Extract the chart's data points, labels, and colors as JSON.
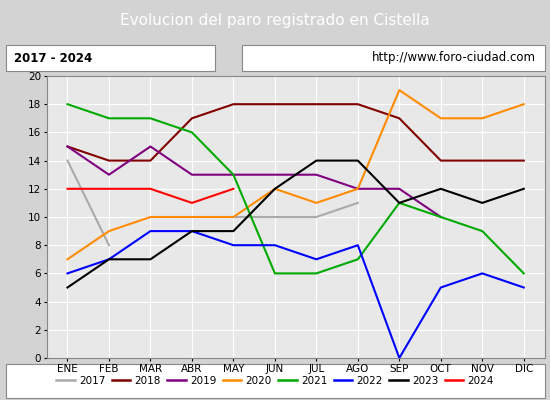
{
  "title": "Evolucion del paro registrado en Cistella",
  "subtitle_left": "2017 - 2024",
  "subtitle_right": "http://www.foro-ciudad.com",
  "months": [
    "ENE",
    "FEB",
    "MAR",
    "ABR",
    "MAY",
    "JUN",
    "JUL",
    "AGO",
    "SEP",
    "OCT",
    "NOV",
    "DIC"
  ],
  "ylim": [
    0,
    20
  ],
  "yticks": [
    0,
    2,
    4,
    6,
    8,
    10,
    12,
    14,
    16,
    18,
    20
  ],
  "series": {
    "2017": {
      "color": "#aaaaaa",
      "values": [
        14,
        8,
        null,
        null,
        10,
        10,
        10,
        11,
        null,
        null,
        null,
        null
      ]
    },
    "2018": {
      "color": "#800000",
      "values": [
        15,
        14,
        14,
        17,
        18,
        18,
        18,
        18,
        17,
        14,
        14,
        14
      ]
    },
    "2019": {
      "color": "#800080",
      "values": [
        15,
        13,
        15,
        13,
        13,
        13,
        13,
        12,
        12,
        10,
        null,
        null
      ]
    },
    "2020": {
      "color": "#ff8c00",
      "values": [
        7,
        9,
        10,
        10,
        10,
        12,
        11,
        12,
        19,
        17,
        17,
        18
      ]
    },
    "2021": {
      "color": "#00aa00",
      "values": [
        18,
        17,
        17,
        16,
        13,
        6,
        6,
        7,
        11,
        10,
        9,
        6
      ]
    },
    "2022": {
      "color": "#0000ff",
      "values": [
        6,
        7,
        9,
        9,
        8,
        8,
        7,
        8,
        0,
        5,
        6,
        5
      ]
    },
    "2023": {
      "color": "#000000",
      "values": [
        5,
        7,
        7,
        9,
        9,
        12,
        14,
        14,
        11,
        12,
        11,
        12
      ]
    },
    "2024": {
      "color": "#ff0000",
      "values": [
        12,
        12,
        12,
        11,
        12,
        null,
        null,
        null,
        null,
        null,
        null,
        null
      ]
    }
  },
  "title_bg_color": "#4472c4",
  "title_text_color": "#ffffff",
  "subtitle_bg_color": "#d3d3d3",
  "plot_bg_color": "#e8e8e8",
  "grid_color": "#ffffff",
  "fig_width": 5.5,
  "fig_height": 4.0,
  "fig_dpi": 100
}
